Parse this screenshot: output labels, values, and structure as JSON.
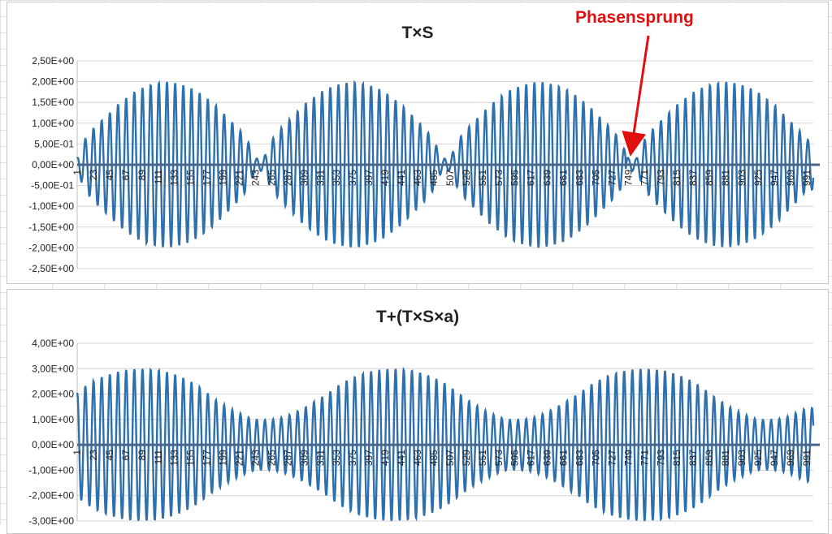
{
  "chart_data": [
    {
      "type": "line",
      "title": "T×S",
      "xlabel": "",
      "ylabel": "",
      "ylim": [
        -2.5,
        2.5
      ],
      "y_ticks": [
        "2,50E+00",
        "2,00E+00",
        "1,50E+00",
        "1,00E+00",
        "5,00E-01",
        "0,00E+00",
        "-5,00E-01",
        "-1,00E+00",
        "-1,50E+00",
        "-2,00E+00",
        "-2,50E+00"
      ],
      "y_tick_values": [
        2.5,
        2.0,
        1.5,
        1.0,
        0.5,
        0.0,
        -0.5,
        -1.0,
        -1.5,
        -2.0,
        -2.5
      ],
      "x_ticks": [
        "1",
        "23",
        "45",
        "67",
        "89",
        "111",
        "133",
        "155",
        "177",
        "199",
        "221",
        "243",
        "265",
        "287",
        "309",
        "331",
        "353",
        "375",
        "397",
        "419",
        "441",
        "463",
        "485",
        "507",
        "529",
        "551",
        "573",
        "595",
        "617",
        "639",
        "661",
        "683",
        "705",
        "727",
        "749",
        "771",
        "793",
        "815",
        "837",
        "859",
        "881",
        "903",
        "925",
        "947",
        "969",
        "991"
      ],
      "xlim": [
        1,
        1000
      ],
      "grid": true,
      "legend": "none",
      "series": [
        {
          "x": [
            1,
            11,
            22,
            33,
            45,
            56,
            67,
            78,
            89,
            100,
            111,
            122,
            133,
            144,
            155,
            166,
            177,
            188,
            199,
            210,
            221,
            232,
            243,
            254,
            265,
            276,
            287,
            298,
            309,
            320,
            331,
            342,
            353,
            364,
            375,
            386,
            397,
            408,
            419,
            430,
            441,
            452,
            463,
            474,
            485,
            496,
            507,
            518,
            529,
            540,
            551,
            562,
            573,
            584,
            595,
            606,
            617,
            628,
            639,
            650,
            661,
            672,
            683,
            694,
            705,
            716,
            727,
            738,
            749,
            760,
            771,
            782,
            793,
            804,
            815,
            826,
            837,
            848,
            859,
            870,
            881,
            892,
            903,
            914,
            925,
            936,
            947,
            958,
            969,
            980,
            991
          ],
          "y": [
            0.15,
            0.6,
            0.85,
            1.05,
            1.25,
            1.45,
            1.6,
            1.75,
            1.85,
            1.92,
            1.97,
            2.0,
            1.97,
            1.92,
            1.85,
            1.75,
            1.6,
            1.45,
            1.25,
            1.05,
            0.85,
            0.6,
            0.15,
            0.15,
            0.6,
            0.85,
            1.05,
            1.25,
            1.45,
            1.6,
            1.75,
            1.85,
            1.92,
            1.97,
            2.0,
            1.97,
            1.92,
            1.85,
            1.75,
            1.6,
            1.45,
            1.25,
            1.05,
            0.85,
            0.6,
            0.15,
            0.15,
            0.6,
            0.85,
            1.05,
            1.25,
            1.45,
            1.6,
            1.75,
            1.85,
            1.92,
            1.97,
            2.0,
            1.97,
            1.92,
            1.85,
            1.75,
            1.6,
            1.45,
            1.25,
            1.05,
            0.85,
            0.6,
            0.15,
            0.15,
            0.6,
            0.85,
            1.05,
            1.25,
            1.45,
            1.6,
            1.75,
            1.85,
            1.92,
            1.97,
            2.0,
            1.97,
            1.92,
            1.85,
            1.75,
            1.6,
            1.45,
            1.25,
            1.05,
            0.85,
            0.6
          ],
          "color": "#2e6fad"
        }
      ],
      "annotations": [
        {
          "text": "Phasensprung",
          "x": 760,
          "y": 0.2,
          "color": "#e01010"
        }
      ]
    },
    {
      "type": "line",
      "title": "T+(T×S×a)",
      "xlabel": "",
      "ylabel": "",
      "ylim": [
        -3,
        4
      ],
      "y_ticks": [
        "4,00E+00",
        "3,00E+00",
        "2,00E+00",
        "1,00E+00",
        "0,00E+00",
        "-1,00E+00",
        "-2,00E+00",
        "-3,00E+00"
      ],
      "y_tick_values": [
        4,
        3,
        2,
        1,
        0,
        -1,
        -2,
        -3
      ],
      "x_ticks": [
        "1",
        "23",
        "45",
        "67",
        "89",
        "111",
        "133",
        "155",
        "177",
        "199",
        "221",
        "243",
        "265",
        "287",
        "309",
        "331",
        "353",
        "375",
        "397",
        "419",
        "441",
        "463",
        "485",
        "507",
        "529",
        "551",
        "573",
        "595",
        "617",
        "639",
        "661",
        "683",
        "705",
        "727",
        "749",
        "771",
        "793",
        "815",
        "837",
        "859",
        "881",
        "903",
        "925",
        "947",
        "969",
        "991"
      ],
      "xlim": [
        1,
        1000
      ],
      "grid": true,
      "legend": "none",
      "series": [
        {
          "x": [
            1,
            11,
            22,
            33,
            45,
            56,
            67,
            78,
            89,
            100,
            111,
            122,
            133,
            144,
            155,
            166,
            177,
            188,
            199,
            210,
            221,
            232,
            243,
            254,
            265,
            276,
            287,
            298,
            309,
            320,
            331,
            342,
            353,
            364,
            375,
            386,
            397,
            408,
            419,
            430,
            441,
            452,
            463,
            474,
            485,
            496,
            507,
            518,
            529,
            540,
            551,
            562,
            573,
            584,
            595,
            606,
            617,
            628,
            639,
            650,
            661,
            672,
            683,
            694,
            705,
            716,
            727,
            738,
            749,
            760,
            771,
            782,
            793,
            804,
            815,
            826,
            837,
            848,
            859,
            870,
            881,
            892,
            903,
            914,
            925,
            936,
            947,
            958,
            969,
            980,
            991
          ],
          "y": [
            2.05,
            2.3,
            2.5,
            2.65,
            2.78,
            2.88,
            2.95,
            2.98,
            3.0,
            2.98,
            2.95,
            2.88,
            2.78,
            2.65,
            2.5,
            2.3,
            2.05,
            1.8,
            1.6,
            1.4,
            1.25,
            1.1,
            1.0,
            0.98,
            1.0,
            1.05,
            1.15,
            1.3,
            1.45,
            1.65,
            1.85,
            2.05,
            2.3,
            2.5,
            2.65,
            2.78,
            2.88,
            2.95,
            2.98,
            3.0,
            2.98,
            2.95,
            2.88,
            2.78,
            2.65,
            2.5,
            2.3,
            2.05,
            1.8,
            1.6,
            1.4,
            1.25,
            1.1,
            1.0,
            0.98,
            1.0,
            1.05,
            1.15,
            1.3,
            1.45,
            1.65,
            1.85,
            2.05,
            2.3,
            2.5,
            2.65,
            2.78,
            2.88,
            2.95,
            2.98,
            3.0,
            2.98,
            2.95,
            2.88,
            2.78,
            2.65,
            2.5,
            2.3,
            2.05,
            1.8,
            1.6,
            1.4,
            1.25,
            1.1,
            1.0,
            0.98,
            1.0,
            1.05,
            1.15,
            1.3,
            1.45
          ],
          "color": "#2e6fad"
        }
      ]
    }
  ]
}
